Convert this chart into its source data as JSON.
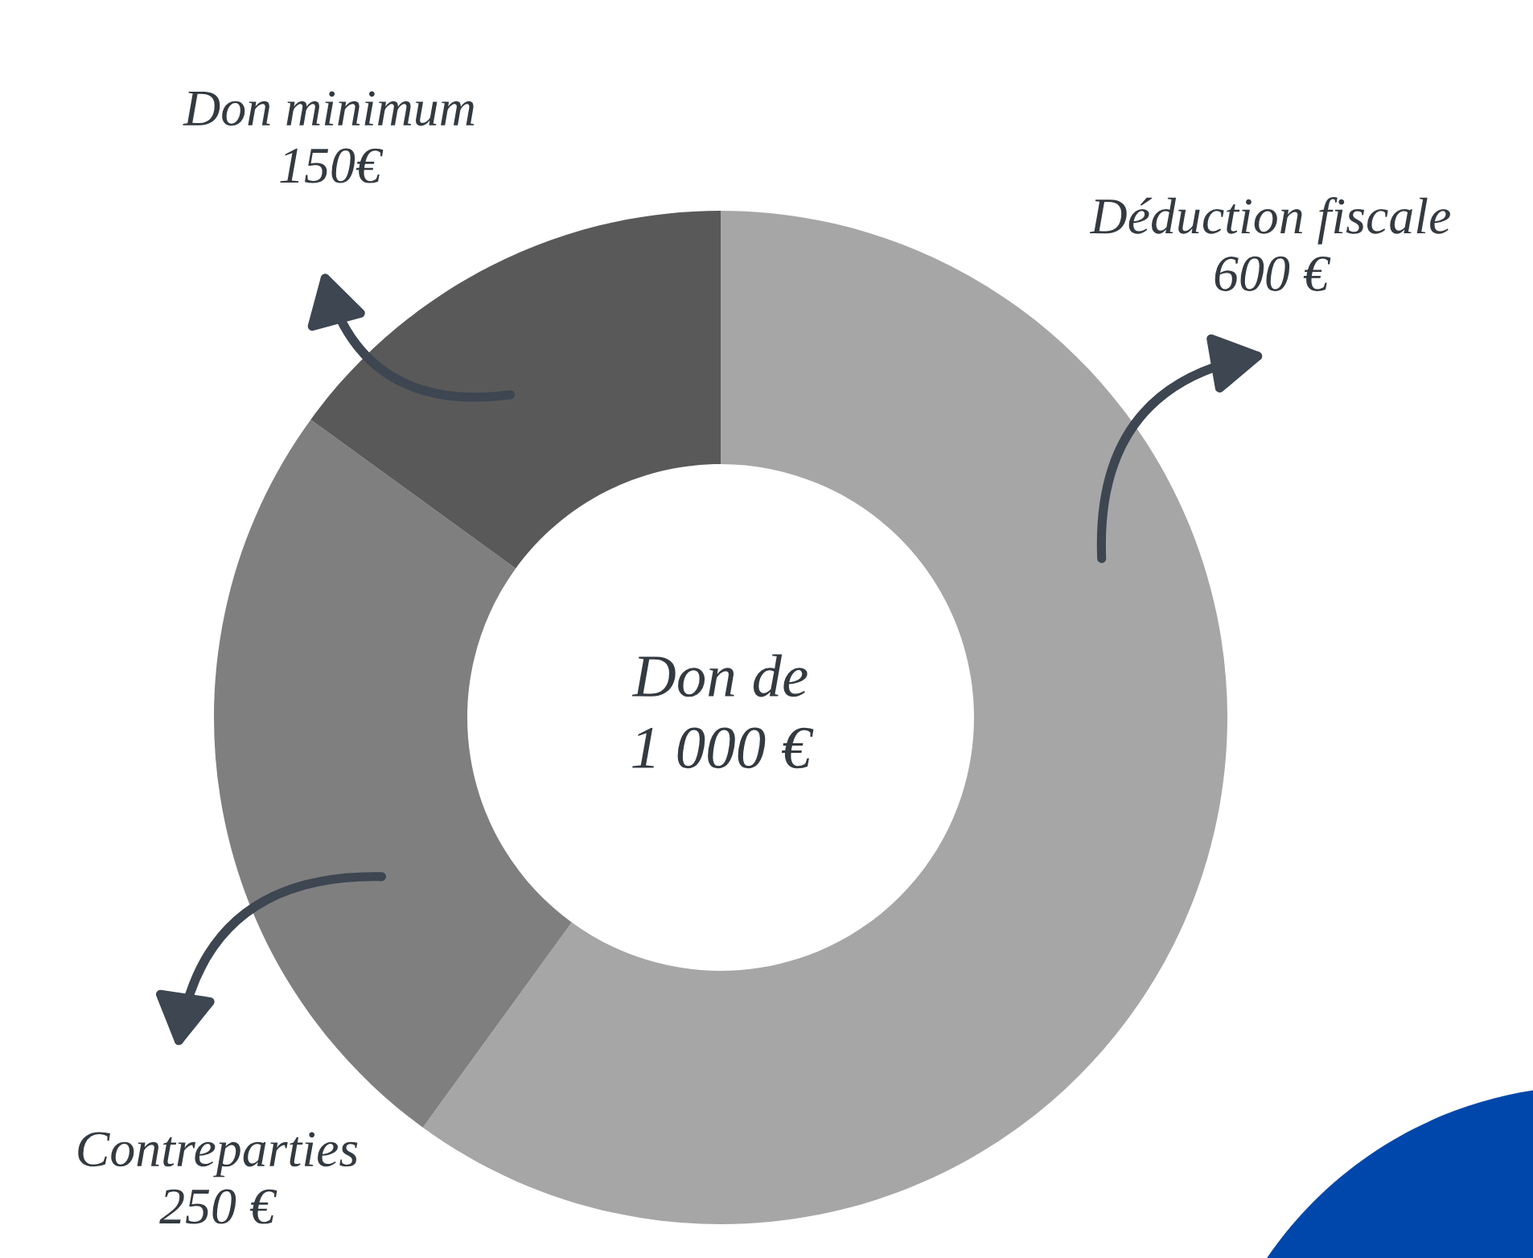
{
  "chart_data": {
    "type": "donut",
    "categories": [
      "Déduction fiscale",
      "Contreparties",
      "Don minimum"
    ],
    "values": [
      600,
      250,
      150
    ],
    "value_labels": [
      "600 €",
      "250 €",
      "150€"
    ],
    "colors": [
      "#a6a6a6",
      "#7f7f7f",
      "#595959"
    ],
    "annotations": [
      "Don de\n1 000 €"
    ]
  }
}
